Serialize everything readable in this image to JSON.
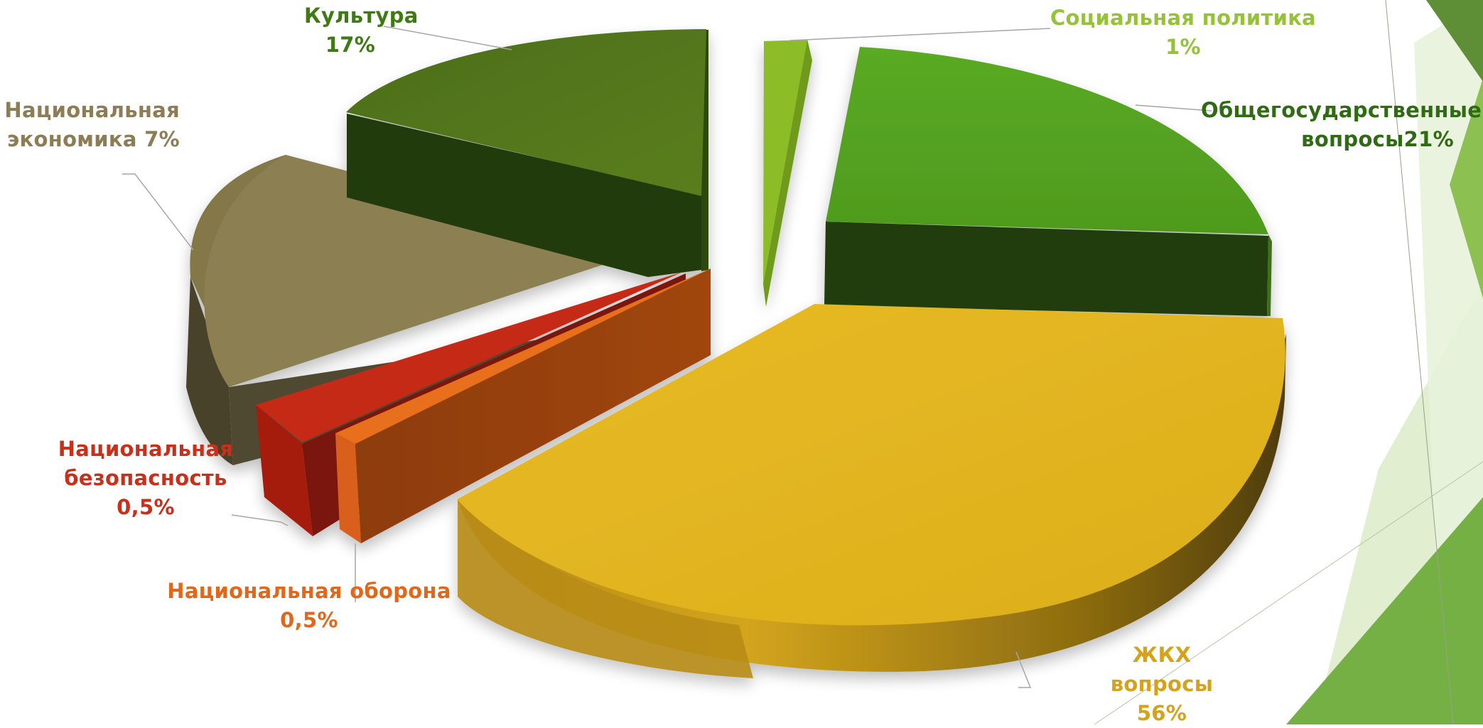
{
  "chart_data": {
    "type": "pie",
    "style": "3d-exploded",
    "slices": [
      {
        "key": "zhkh",
        "label_lines": [
          "ЖКХ",
          "вопросы",
          "56%"
        ],
        "value": 56,
        "color": "#e2b41d"
      },
      {
        "key": "obsch",
        "label_lines": [
          "Общегосударственные",
          "вопросы21%"
        ],
        "value": 21,
        "color": "#55a020"
      },
      {
        "key": "kult",
        "label_lines": [
          "Культура",
          "17%"
        ],
        "value": 17,
        "color": "#55761c"
      },
      {
        "key": "nec",
        "label_lines": [
          "Национальная",
          "экономика 7%"
        ],
        "value": 7,
        "color": "#8c8050"
      },
      {
        "key": "bez",
        "label_lines": [
          "Национальная",
          "безопасность",
          "0,5%"
        ],
        "value": 0.5,
        "color": "#c42a14"
      },
      {
        "key": "obor",
        "label_lines": [
          "Национальная  оборона",
          "0,5%"
        ],
        "value": 0.5,
        "color": "#e0621a"
      },
      {
        "key": "soc",
        "label_lines": [
          "Социальная  политика",
          "1%"
        ],
        "value": 1,
        "color": "#8cbc28"
      }
    ],
    "label_colors": {
      "zhkh": "#d6a21a",
      "obsch": "#2f6b12",
      "kult": "#3f7a14",
      "nec": "#8c7d55",
      "bez": "#c8301c",
      "obor": "#e0681c",
      "soc": "#96c23a"
    },
    "legend": "none"
  },
  "decor": {
    "accent_dark": "#5c9a2e",
    "accent_mid": "#7bb445",
    "accent_light": "#dcebc8"
  }
}
